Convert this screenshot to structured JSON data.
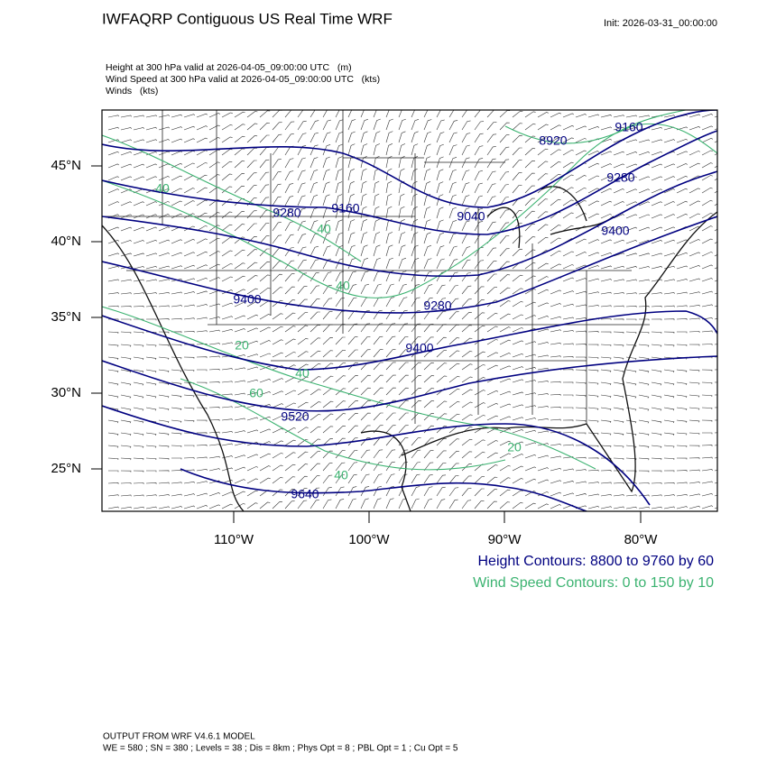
{
  "header": {
    "title": "IWFAQRP Contiguous US Real Time WRF",
    "init": "Init: 2026-03-31_00:00:00"
  },
  "fields": [
    "Height at 300 hPa valid at 2026-04-05_09:00:00 UTC   (m)",
    "Wind Speed at 300 hPa valid at 2026-04-05_09:00:00 UTC   (kts)",
    "Winds   (kts)"
  ],
  "map": {
    "lat_labels": [
      "45°N",
      "40°N",
      "35°N",
      "30°N",
      "25°N"
    ],
    "lon_labels": [
      "110°W",
      "100°W",
      "90°W",
      "80°W"
    ],
    "height_contour_labels": [
      "9280",
      "9160",
      "9040",
      "8920",
      "9160",
      "9280",
      "9400",
      "9400",
      "9280",
      "9400",
      "9520",
      "9640"
    ],
    "speed_contour_labels": [
      "40",
      "40",
      "20",
      "40",
      "60",
      "40",
      "20",
      "40"
    ]
  },
  "legend": {
    "height": "Height Contours: 8800 to 9760 by 60",
    "speed": "Wind Speed Contours: 0 to 150 by 10"
  },
  "footer": {
    "model": "OUTPUT FROM WRF V4.6.1 MODEL",
    "settings": "WE = 580 ; SN = 380 ; Levels = 38 ; Dis = 8km ; Phys Opt = 8 ; PBL Opt = 1 ; Cu Opt = 5"
  }
}
